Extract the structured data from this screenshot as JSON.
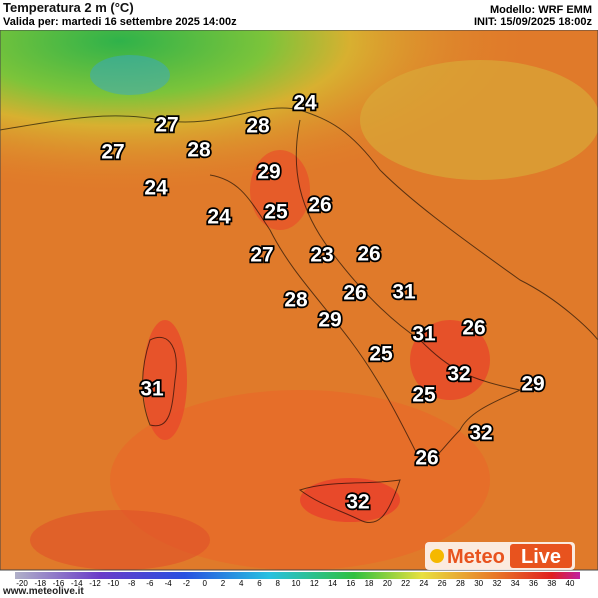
{
  "header": {
    "title": "Temperatura 2 m (°C)",
    "subtitle": "Valida per: martedi 16 settembre 2025 14:00z",
    "model": "Modello: WRF EMM",
    "init": "INIT: 15/09/2025 18:00z"
  },
  "labels": [
    24,
    27,
    28,
    27,
    28,
    29,
    24,
    26,
    25,
    24,
    27,
    23,
    26,
    26,
    31,
    28,
    29,
    31,
    26,
    25,
    32,
    29,
    31,
    25,
    32,
    26,
    32
  ],
  "colorbar": {
    "ticks": [
      -20,
      -18,
      -16,
      -14,
      -12,
      -10,
      -8,
      -6,
      -4,
      -2,
      0,
      2,
      4,
      6,
      8,
      10,
      12,
      14,
      16,
      18,
      20,
      22,
      24,
      26,
      28,
      30,
      32,
      34,
      36,
      38,
      40
    ]
  },
  "logo": {
    "left": "Meteo",
    "right": "Live"
  },
  "footer": {
    "url": "www.meteolive.it"
  }
}
